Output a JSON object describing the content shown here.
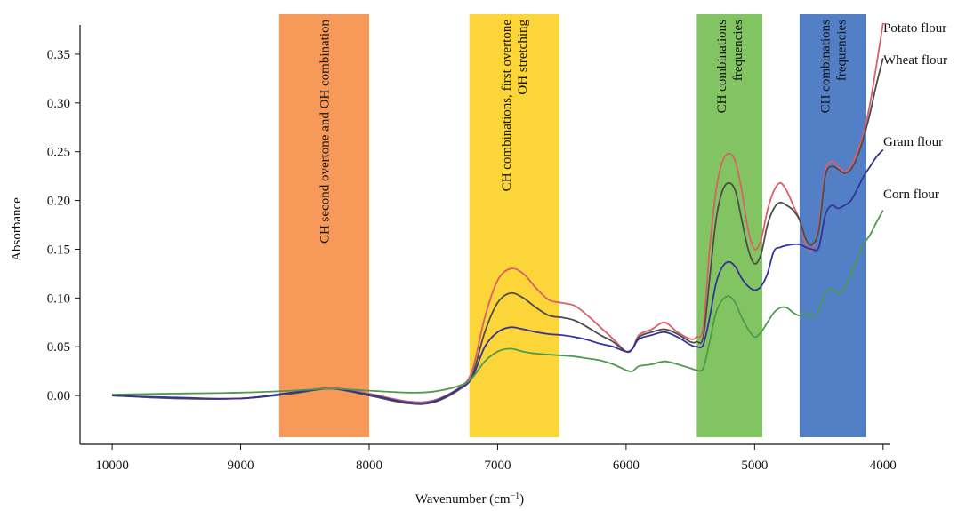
{
  "chart_data": {
    "type": "line",
    "title": "",
    "xlabel": "Wavenumber (cm",
    "xlabel_sup": "−1",
    "xlabel_close": ")",
    "ylabel": "Absorbance",
    "xlim": [
      10250,
      3950
    ],
    "ylim": [
      -0.05,
      0.38
    ],
    "x_ticks": [
      10000,
      9000,
      8000,
      7000,
      6000,
      5000,
      4000
    ],
    "x_tick_labels": [
      "10000",
      "9000",
      "8000",
      "7000",
      "6000",
      "5000",
      "4000"
    ],
    "y_ticks": [
      0.0,
      0.05,
      0.1,
      0.15,
      0.2,
      0.25,
      0.3,
      0.35
    ],
    "y_tick_labels": [
      "0.00",
      "0.05",
      "0.10",
      "0.15",
      "0.20",
      "0.25",
      "0.30",
      "0.35"
    ],
    "grid": false,
    "legend": "right-edge labels",
    "bands": [
      {
        "x_from": 8700,
        "x_to": 8000,
        "color": "#f59450",
        "lines": [
          "CH second overtone and OH combination"
        ]
      },
      {
        "x_from": 7220,
        "x_to": 6520,
        "color": "#fcd42e",
        "lines": [
          "CH combinations, first overtone",
          "OH stretching"
        ]
      },
      {
        "x_from": 5450,
        "x_to": 4940,
        "color": "#7cc15a",
        "lines": [
          "CH combinations",
          "frequencies"
        ]
      },
      {
        "x_from": 4650,
        "x_to": 4130,
        "color": "#4a78c4",
        "lines": [
          "CH combinations",
          "frequencies"
        ]
      }
    ],
    "series": [
      {
        "name": "Potato flour",
        "color": "#d9606a",
        "label_y": 0.382,
        "x": [
          10000,
          9500,
          9000,
          8600,
          8300,
          8000,
          7700,
          7500,
          7300,
          7200,
          7100,
          7000,
          6900,
          6800,
          6700,
          6600,
          6500,
          6400,
          6300,
          6200,
          6100,
          6000,
          5950,
          5900,
          5800,
          5700,
          5600,
          5500,
          5450,
          5400,
          5350,
          5300,
          5250,
          5200,
          5150,
          5100,
          5050,
          5000,
          4950,
          4900,
          4850,
          4800,
          4750,
          4700,
          4650,
          4600,
          4550,
          4500,
          4450,
          4400,
          4350,
          4300,
          4250,
          4200,
          4150,
          4100,
          4050,
          4000
        ],
        "y": [
          0.0,
          -0.003,
          -0.003,
          0.003,
          0.008,
          0.002,
          -0.006,
          -0.005,
          0.008,
          0.025,
          0.08,
          0.118,
          0.13,
          0.125,
          0.11,
          0.098,
          0.095,
          0.092,
          0.082,
          0.07,
          0.058,
          0.045,
          0.048,
          0.062,
          0.068,
          0.075,
          0.065,
          0.058,
          0.06,
          0.07,
          0.15,
          0.21,
          0.24,
          0.248,
          0.24,
          0.21,
          0.17,
          0.15,
          0.16,
          0.19,
          0.21,
          0.218,
          0.21,
          0.195,
          0.18,
          0.155,
          0.15,
          0.175,
          0.23,
          0.24,
          0.235,
          0.23,
          0.235,
          0.25,
          0.27,
          0.3,
          0.34,
          0.382
        ]
      },
      {
        "name": "Wheat flour",
        "color": "#4d4d4d",
        "label_y": 0.346,
        "x": [
          10000,
          9500,
          9000,
          8600,
          8300,
          8000,
          7700,
          7500,
          7300,
          7200,
          7100,
          7000,
          6900,
          6800,
          6700,
          6600,
          6500,
          6400,
          6300,
          6200,
          6100,
          6000,
          5950,
          5900,
          5800,
          5700,
          5600,
          5500,
          5450,
          5400,
          5350,
          5300,
          5250,
          5200,
          5150,
          5100,
          5050,
          5000,
          4950,
          4900,
          4850,
          4800,
          4750,
          4700,
          4650,
          4600,
          4550,
          4500,
          4450,
          4400,
          4350,
          4300,
          4250,
          4200,
          4150,
          4100,
          4050,
          4000
        ],
        "y": [
          0.0,
          -0.003,
          -0.003,
          0.002,
          0.007,
          0.0,
          -0.008,
          -0.007,
          0.006,
          0.02,
          0.065,
          0.095,
          0.105,
          0.1,
          0.09,
          0.082,
          0.08,
          0.077,
          0.07,
          0.062,
          0.055,
          0.045,
          0.048,
          0.06,
          0.065,
          0.068,
          0.063,
          0.055,
          0.055,
          0.06,
          0.12,
          0.18,
          0.21,
          0.218,
          0.21,
          0.18,
          0.15,
          0.135,
          0.145,
          0.175,
          0.192,
          0.198,
          0.195,
          0.19,
          0.18,
          0.16,
          0.155,
          0.17,
          0.225,
          0.235,
          0.232,
          0.228,
          0.232,
          0.245,
          0.265,
          0.29,
          0.32,
          0.346
        ]
      },
      {
        "name": "Gram flour",
        "color": "#33339a",
        "label_y": 0.252,
        "x": [
          10000,
          9500,
          9000,
          8600,
          8300,
          8000,
          7700,
          7500,
          7300,
          7200,
          7100,
          7000,
          6900,
          6800,
          6700,
          6600,
          6500,
          6400,
          6300,
          6200,
          6100,
          6000,
          5950,
          5900,
          5800,
          5700,
          5600,
          5500,
          5450,
          5400,
          5350,
          5300,
          5250,
          5200,
          5150,
          5100,
          5050,
          5000,
          4950,
          4900,
          4850,
          4800,
          4750,
          4700,
          4650,
          4600,
          4550,
          4500,
          4450,
          4400,
          4350,
          4300,
          4250,
          4200,
          4150,
          4100,
          4050,
          4000
        ],
        "y": [
          0.0,
          -0.002,
          -0.003,
          0.003,
          0.007,
          0.001,
          -0.007,
          -0.006,
          0.007,
          0.018,
          0.05,
          0.065,
          0.07,
          0.068,
          0.065,
          0.063,
          0.062,
          0.06,
          0.057,
          0.053,
          0.05,
          0.045,
          0.048,
          0.058,
          0.062,
          0.065,
          0.06,
          0.052,
          0.05,
          0.052,
          0.08,
          0.115,
          0.132,
          0.137,
          0.132,
          0.12,
          0.112,
          0.108,
          0.112,
          0.125,
          0.148,
          0.152,
          0.154,
          0.155,
          0.155,
          0.152,
          0.15,
          0.152,
          0.185,
          0.195,
          0.192,
          0.195,
          0.2,
          0.212,
          0.225,
          0.235,
          0.245,
          0.252
        ]
      },
      {
        "name": "Corn flour",
        "color": "#4e9a4e",
        "label_y": 0.19,
        "x": [
          10000,
          9500,
          9000,
          8600,
          8300,
          8000,
          7700,
          7500,
          7300,
          7200,
          7100,
          7000,
          6900,
          6800,
          6700,
          6600,
          6500,
          6400,
          6300,
          6200,
          6100,
          6000,
          5950,
          5900,
          5800,
          5700,
          5600,
          5500,
          5450,
          5400,
          5350,
          5300,
          5250,
          5200,
          5150,
          5100,
          5050,
          5000,
          4950,
          4900,
          4850,
          4800,
          4750,
          4700,
          4650,
          4600,
          4550,
          4500,
          4450,
          4400,
          4350,
          4300,
          4250,
          4200,
          4150,
          4100,
          4050,
          4000
        ],
        "y": [
          0.001,
          0.002,
          0.003,
          0.005,
          0.007,
          0.005,
          0.003,
          0.004,
          0.01,
          0.018,
          0.035,
          0.045,
          0.048,
          0.045,
          0.043,
          0.042,
          0.041,
          0.04,
          0.038,
          0.036,
          0.032,
          0.026,
          0.025,
          0.03,
          0.032,
          0.035,
          0.032,
          0.028,
          0.026,
          0.028,
          0.055,
          0.085,
          0.098,
          0.102,
          0.095,
          0.08,
          0.068,
          0.06,
          0.065,
          0.075,
          0.085,
          0.09,
          0.09,
          0.085,
          0.082,
          0.085,
          0.08,
          0.088,
          0.105,
          0.11,
          0.105,
          0.11,
          0.125,
          0.14,
          0.155,
          0.165,
          0.178,
          0.19
        ]
      }
    ]
  }
}
